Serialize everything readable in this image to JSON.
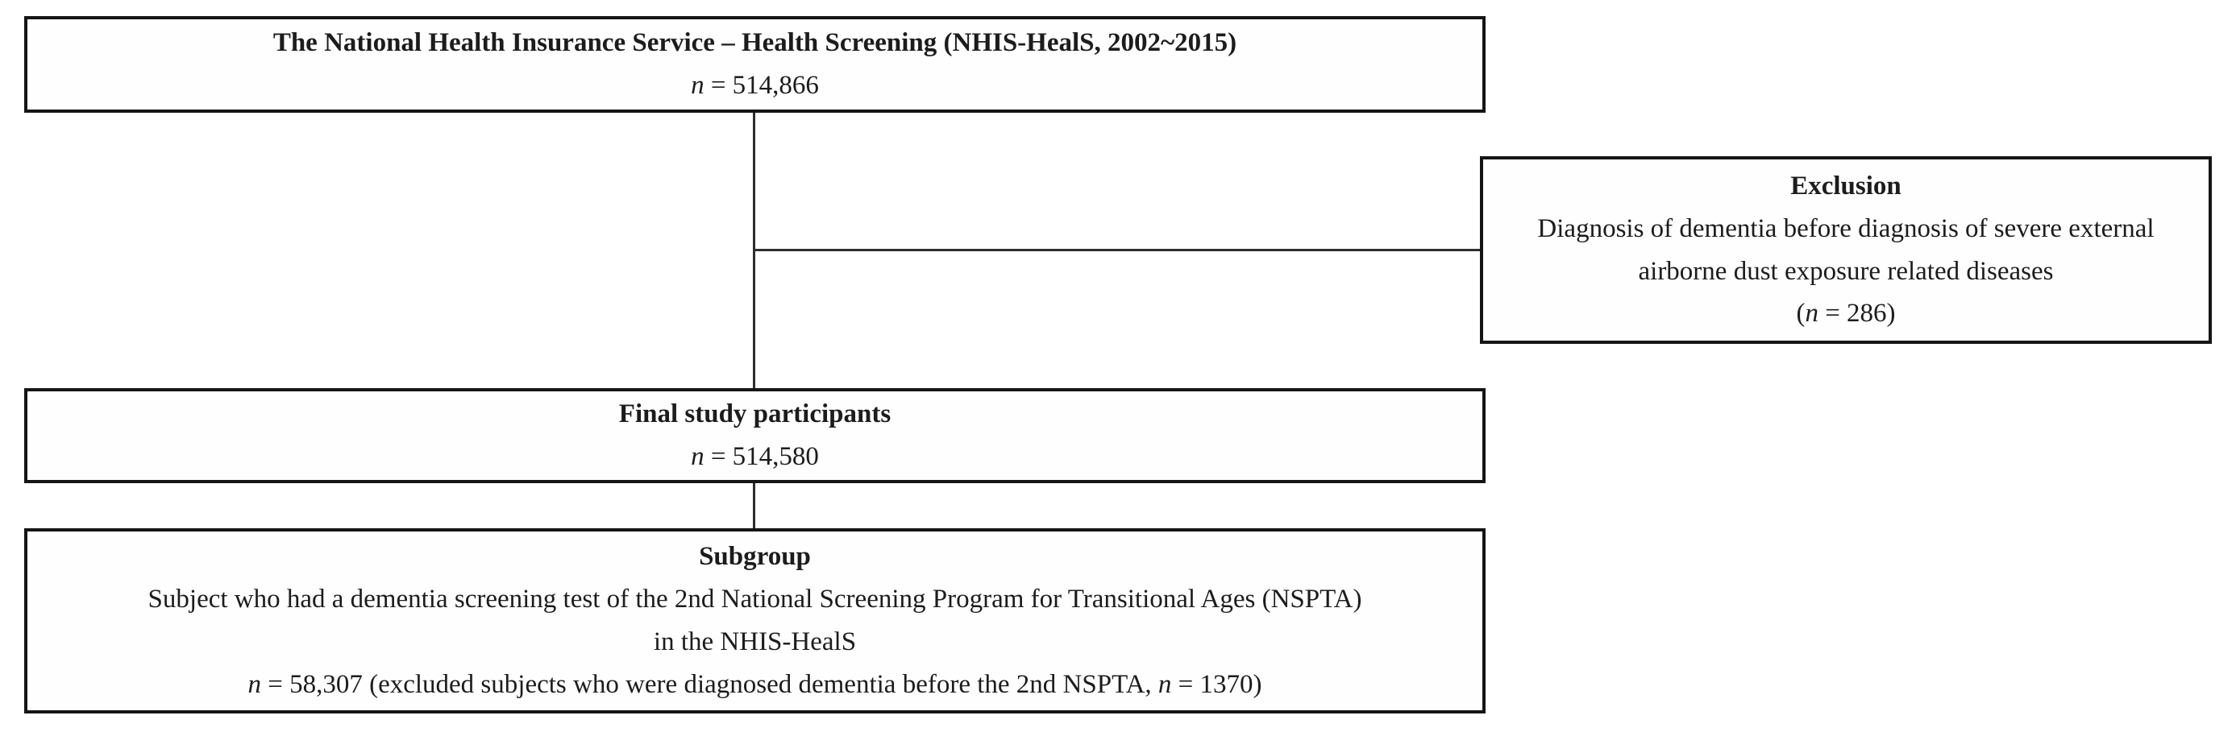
{
  "colors": {
    "border": "#151515",
    "connector": "#2e2e2e",
    "text": "#1c1c1c",
    "background": "#ffffff"
  },
  "flow": {
    "top_box": {
      "title": "The National Health Insurance Service – Health Screening (NHIS-HealS, 2002~2015)",
      "n_italic": "n",
      "n_rest": " = 514,866"
    },
    "exclusion_box": {
      "title": "Exclusion",
      "body_line1": "Diagnosis of dementia before diagnosis of severe external",
      "body_line2": "airborne dust exposure related diseases",
      "paren_open": "(",
      "n_italic": "n",
      "n_rest": " = 286)"
    },
    "final_box": {
      "title": "Final study participants",
      "n_italic": "n",
      "n_rest": " = 514,580"
    },
    "subgroup_box": {
      "title": "Subgroup",
      "body_line1": "Subject who had a dementia screening test of the 2nd National Screening Program for Transitional Ages (NSPTA)",
      "body_line2": "in the NHIS-HealS",
      "n1_italic": "n",
      "n1_rest": " = 58,307 (excluded subjects who were diagnosed dementia before the 2nd NSPTA, ",
      "n2_italic": "n",
      "n2_rest": " = 1370)"
    }
  }
}
